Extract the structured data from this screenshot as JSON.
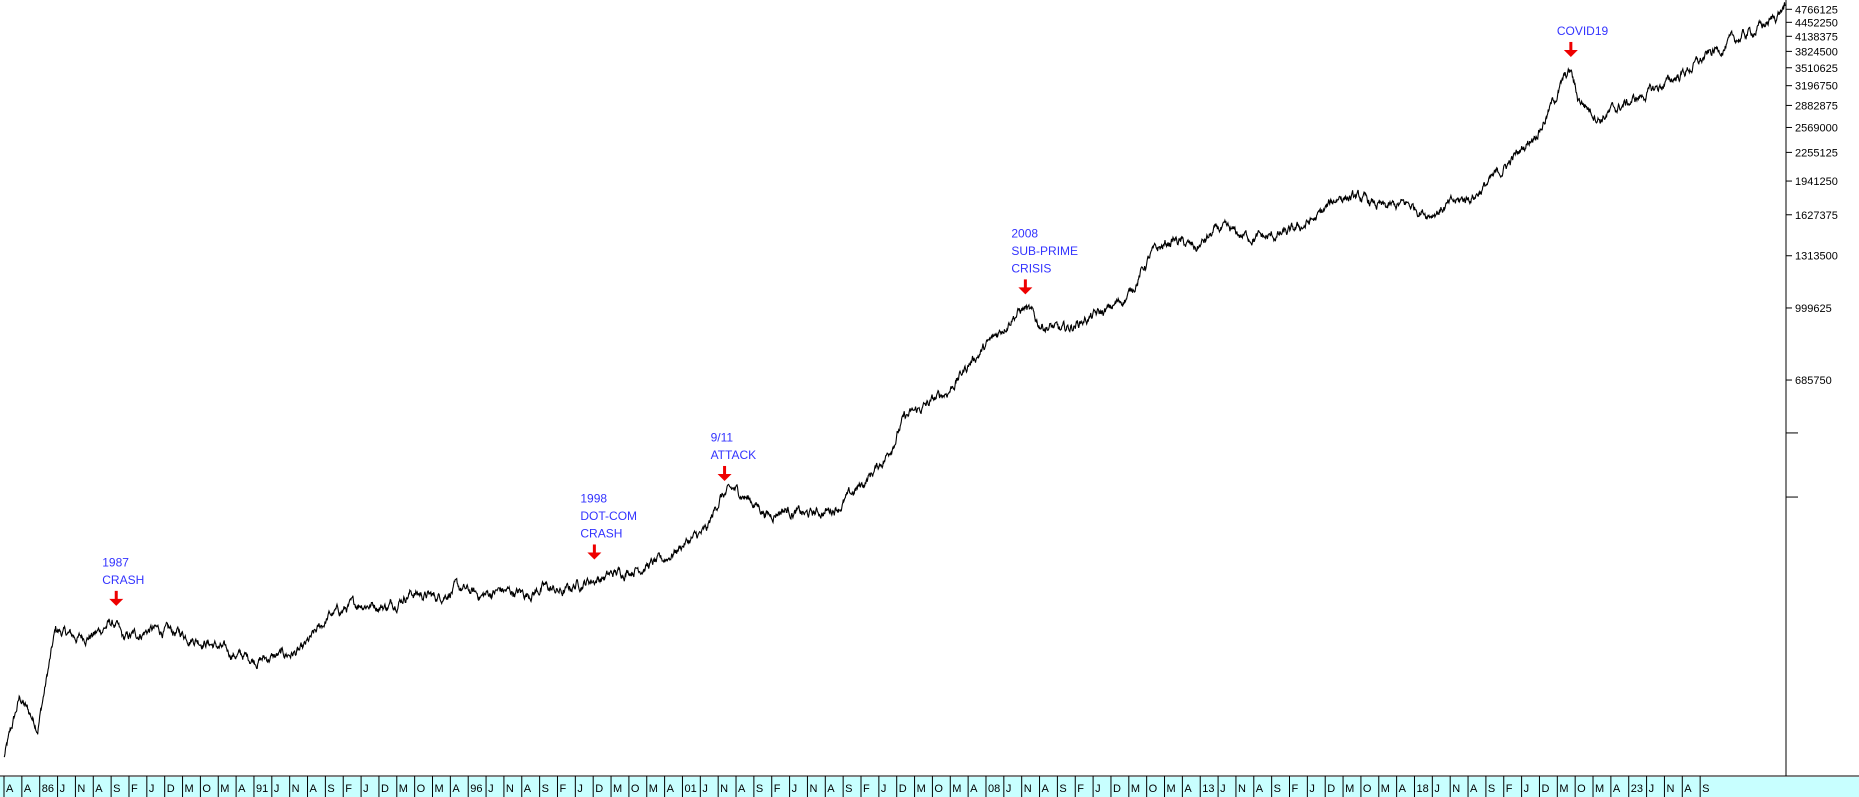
{
  "chart_data": {
    "type": "line",
    "title": "",
    "xlabel": "",
    "ylabel": "",
    "y_scale": "log",
    "grid": false,
    "legend": "none",
    "x_range": [
      1985.25,
      2024.92
    ],
    "y_range": [
      95000,
      4900000
    ],
    "y_tick_labels": [
      "4766125",
      "4452250",
      "4138375",
      "3824500",
      "3510625",
      "3196750",
      "2882875",
      "2569000",
      "2255125",
      "1941250",
      "1627375",
      "1313500",
      "999625",
      "685750"
    ],
    "y_minor_ticks": [
      520000,
      371875
    ],
    "x_tick_labels": [
      "A",
      "A",
      "86",
      "J",
      "N",
      "A",
      "S",
      "F",
      "J",
      "D",
      "M",
      "O",
      "M",
      "A",
      "91",
      "J",
      "N",
      "A",
      "S",
      "F",
      "J",
      "D",
      "M",
      "O",
      "M",
      "A",
      "96",
      "J",
      "N",
      "A",
      "S",
      "F",
      "J",
      "D",
      "M",
      "O",
      "M",
      "A",
      "01",
      "J",
      "N",
      "A",
      "S",
      "F",
      "J",
      "N",
      "A",
      "S",
      "F",
      "J",
      "D",
      "M",
      "O",
      "M",
      "A",
      "08",
      "J",
      "N",
      "A",
      "S",
      "F",
      "J",
      "D",
      "M",
      "O",
      "M",
      "A",
      "13",
      "J",
      "N",
      "A",
      "S",
      "F",
      "J",
      "D",
      "M",
      "O",
      "M",
      "A",
      "18",
      "J",
      "N",
      "A",
      "S",
      "F",
      "J",
      "D",
      "M",
      "O",
      "M",
      "A",
      "23",
      "J",
      "N",
      "A",
      "S"
    ],
    "series": [
      {
        "color": "#000000",
        "x": [
          1985.25,
          1985.6,
          1986.0,
          1986.4,
          1986.9,
          1987.3,
          1987.6,
          1987.75,
          1987.9,
          1988.5,
          1989.2,
          1989.8,
          1990.3,
          1990.9,
          1991.4,
          1991.9,
          1992.5,
          1993.2,
          1993.8,
          1994.3,
          1994.9,
          1995.3,
          1995.9,
          1996.3,
          1996.9,
          1997.3,
          1997.7,
          1998.0,
          1998.4,
          1998.6,
          1998.8,
          1999.4,
          1999.9,
          2000.4,
          2000.9,
          2001.2,
          2001.5,
          2001.7,
          2002.3,
          2002.6,
          2003.1,
          2003.6,
          2003.9,
          2004.4,
          2004.9,
          2005.3,
          2005.8,
          2006.3,
          2006.8,
          2007.3,
          2007.7,
          2008.0,
          2008.3,
          2008.6,
          2008.8,
          2009.3,
          2009.8,
          2010.3,
          2010.8,
          2011.3,
          2011.8,
          2012.3,
          2012.8,
          2013.4,
          2013.9,
          2014.5,
          2015.0,
          2015.5,
          2016.0,
          2016.5,
          2017.0,
          2017.5,
          2018.0,
          2018.5,
          2019.0,
          2019.5,
          2020.0,
          2020.15,
          2020.3,
          2020.8,
          2021.3,
          2021.8,
          2022.3,
          2022.8,
          2023.3,
          2023.8,
          2024.2,
          2024.6,
          2024.92
        ],
        "y": [
          95000,
          130000,
          112000,
          185000,
          178000,
          182000,
          192000,
          190000,
          176000,
          186000,
          182000,
          174000,
          164000,
          159000,
          162000,
          166000,
          200000,
          214000,
          210000,
          226000,
          220000,
          231000,
          222000,
          228000,
          224000,
          232000,
          225000,
          236000,
          242000,
          244000,
          248000,
          258000,
          265000,
          292000,
          310000,
          372000,
          385000,
          378000,
          338000,
          350000,
          338000,
          346000,
          358000,
          400000,
          460000,
          560000,
          600000,
          650000,
          760000,
          850000,
          960000,
          1000000,
          920000,
          905000,
          880000,
          940000,
          980000,
          1070000,
          1320000,
          1430000,
          1360000,
          1510000,
          1460000,
          1440000,
          1480000,
          1600000,
          1800000,
          1760000,
          1680000,
          1720000,
          1640000,
          1720000,
          1800000,
          2000000,
          2260000,
          2600000,
          3300000,
          3450000,
          3000000,
          2700000,
          2880000,
          3050000,
          3250000,
          3500000,
          3800000,
          4050000,
          4250000,
          4480000,
          4850000
        ]
      }
    ],
    "annotations": [
      {
        "lines": [
          "1987",
          "CRASH"
        ],
        "x": 1987.75,
        "y": 204000
      },
      {
        "lines": [
          "1998",
          "DOT-COM",
          "CRASH"
        ],
        "x": 1998.4,
        "y": 260000
      },
      {
        "lines": [
          "9/11",
          "ATTACK"
        ],
        "x": 2001.3,
        "y": 392000
      },
      {
        "lines": [
          "2008",
          "SUB-PRIME",
          "CRISIS"
        ],
        "x": 2008.0,
        "y": 1040000
      },
      {
        "lines": [
          "COVID19"
        ],
        "x": 2020.15,
        "y": 3600000
      }
    ]
  },
  "colors": {
    "background": "#ffffff",
    "price_line": "#000000",
    "annotation_text": "#3333ff",
    "annotation_arrow": "#ee0000",
    "x_axis_band": "#c8ffff"
  }
}
